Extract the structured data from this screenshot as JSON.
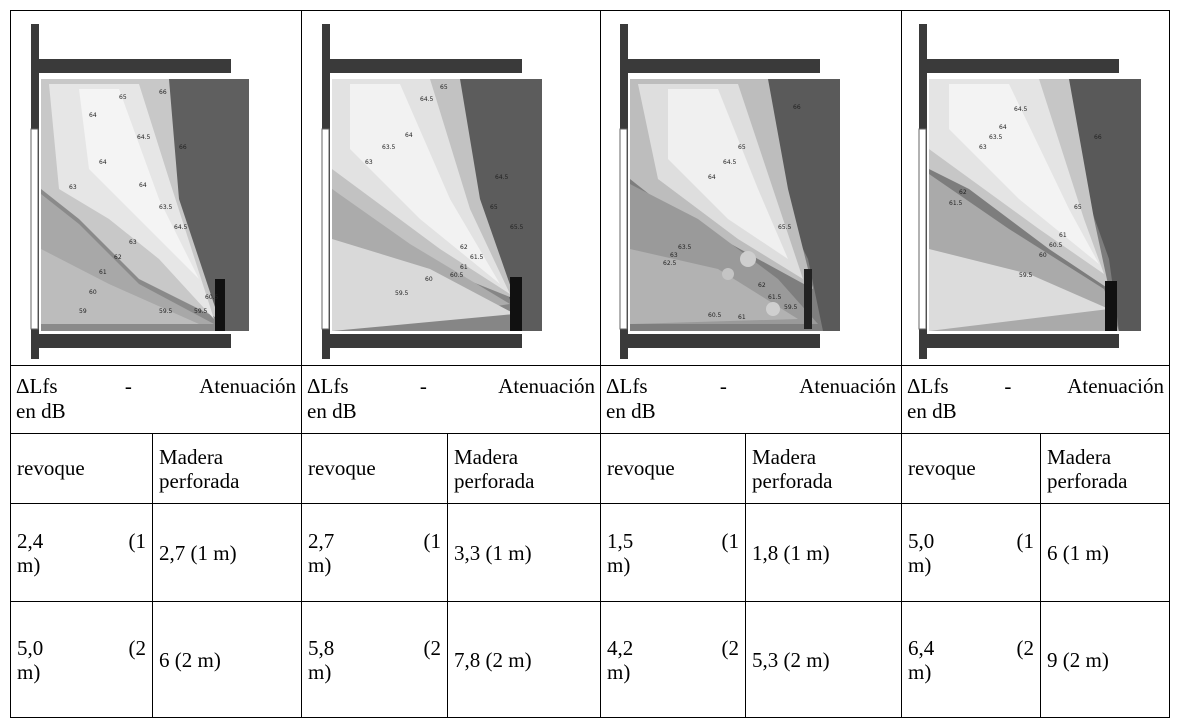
{
  "figures": [
    {
      "name": "contour-map-1",
      "contour_labels": [
        "64",
        "65",
        "64.5",
        "66",
        "64",
        "63",
        "64",
        "66",
        "63.5",
        "64.5",
        "63",
        "62",
        "61",
        "60",
        "59.5",
        "59",
        "59.5",
        "60.5"
      ]
    },
    {
      "name": "contour-map-2",
      "contour_labels": [
        "64.5",
        "65",
        "64",
        "63.5",
        "63",
        "62",
        "61.5",
        "61",
        "60.5",
        "60",
        "59.5",
        "64.5",
        "65",
        "65.5"
      ]
    },
    {
      "name": "contour-map-3",
      "contour_labels": [
        "65",
        "64.5",
        "64",
        "63.5",
        "63",
        "62.5",
        "62",
        "61.5",
        "61",
        "60.5",
        "65.5",
        "66",
        "59.5"
      ]
    },
    {
      "name": "contour-map-4",
      "contour_labels": [
        "64.5",
        "64",
        "63.5",
        "63",
        "62",
        "61.5",
        "61",
        "60.5",
        "60",
        "59.5",
        "65",
        "66"
      ]
    }
  ],
  "caption_line1_left": "ΔLfs",
  "caption_line1_dash": "-",
  "caption_line1_right": "Atenuación",
  "caption_line2": "en dB",
  "columns": [
    {
      "rev_label": "revoque",
      "mad_label_1": "Madera",
      "mad_label_2": "perforada",
      "rows": [
        {
          "rev_a": "2,4",
          "rev_b": "(1",
          "rev_c": "m)",
          "mad": "2,7 (1 m)"
        },
        {
          "rev_a": "5,0",
          "rev_b": "(2",
          "rev_c": "m)",
          "mad": "6 (2 m)"
        }
      ]
    },
    {
      "rev_label": "revoque",
      "mad_label_1": "Madera",
      "mad_label_2": "perforada",
      "rows": [
        {
          "rev_a": "2,7",
          "rev_b": "(1",
          "rev_c": "m)",
          "mad": "3,3 (1 m)"
        },
        {
          "rev_a": "5,8",
          "rev_b": "(2",
          "rev_c": "m)",
          "mad": "7,8 (2 m)"
        }
      ]
    },
    {
      "rev_label": "revoque",
      "mad_label_1": "Madera",
      "mad_label_2": "perforada",
      "rows": [
        {
          "rev_a": "1,5",
          "rev_b": "(1",
          "rev_c": "m)",
          "mad": "1,8 (1 m)"
        },
        {
          "rev_a": "4,2",
          "rev_b": "(2",
          "rev_c": "m)",
          "mad": "5,3 (2 m)"
        }
      ]
    },
    {
      "rev_label": "revoque",
      "mad_label_1": "Madera",
      "mad_label_2": "perforada",
      "rows": [
        {
          "rev_a": "5,0",
          "rev_b": "(1",
          "rev_c": "m)",
          "mad": "6 (1 m)"
        },
        {
          "rev_a": "6,4",
          "rev_b": "(2",
          "rev_c": "m)",
          "mad": "9 (2 m)"
        }
      ]
    }
  ]
}
